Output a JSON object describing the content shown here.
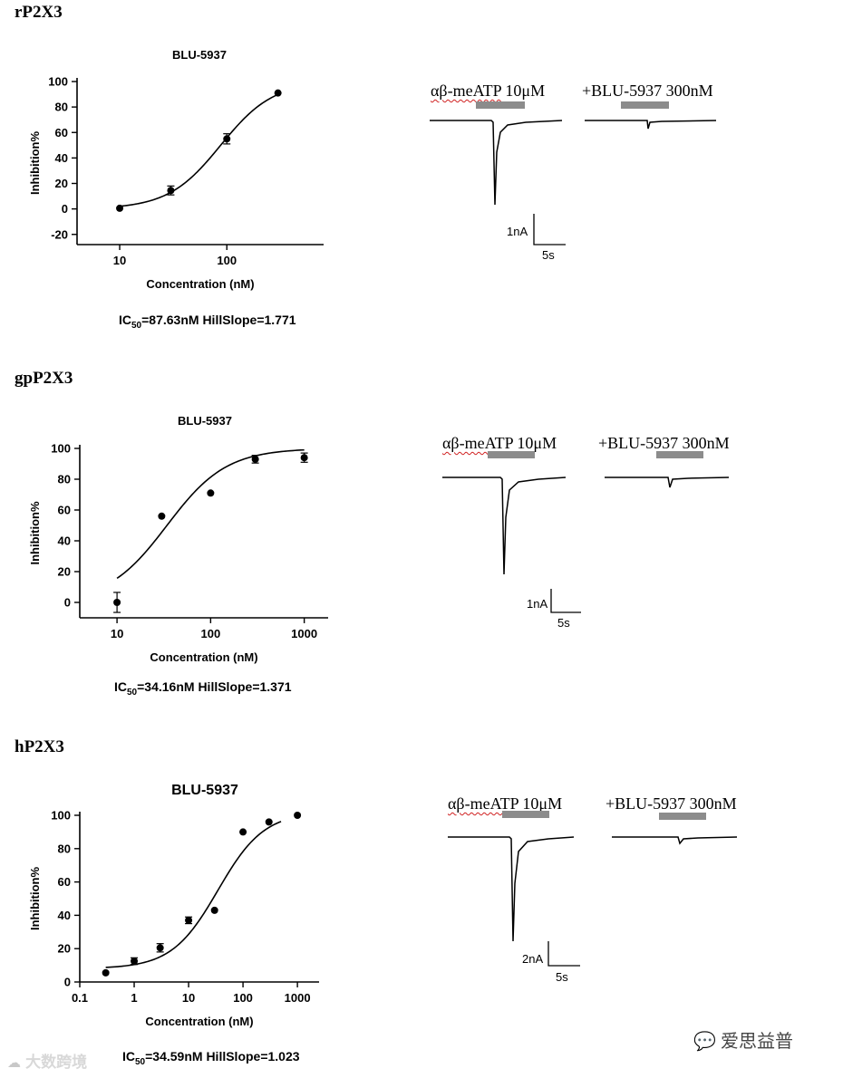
{
  "sections": [
    {
      "label": "rP2X3",
      "ic50_label": "IC",
      "ic50_sub": "50",
      "ic50_rest": "=87.63nM HillSlope=1.771",
      "trace": {
        "agonist_label_a": "αβ-meATP",
        "agonist_label_b": " 10μM",
        "antagonist_label": "+BLU-5937 300nM",
        "scale_current": "1nA",
        "scale_time": "5s"
      }
    },
    {
      "label": "gpP2X3",
      "ic50_label": "IC",
      "ic50_sub": "50",
      "ic50_rest": "=34.16nM HillSlope=1.371",
      "trace": {
        "agonist_label_a": "αβ-meATP",
        "agonist_label_b": " 10μM",
        "antagonist_label": "+BLU-5937 300nM",
        "scale_current": "1nA",
        "scale_time": "5s"
      }
    },
    {
      "label": "hP2X3",
      "ic50_label": "IC",
      "ic50_sub": "50",
      "ic50_rest": "=34.59nM HillSlope=1.023",
      "trace": {
        "agonist_label_a": "αβ-meATP",
        "agonist_label_b": " 10μM",
        "antagonist_label": "+BLU-5937 300nM",
        "scale_current": "2nA",
        "scale_time": "5s"
      }
    }
  ],
  "chart_data": [
    {
      "type": "scatter",
      "title": "BLU-5937",
      "xlabel": "Concentration (nM)",
      "ylabel": "Inhibition%",
      "xscale": "log",
      "xlim": [
        4,
        800
      ],
      "ylim": [
        -28,
        100
      ],
      "xticks": [
        10,
        100
      ],
      "xtick_labels": [
        "10",
        "100"
      ],
      "yticks": [
        -20,
        0,
        20,
        40,
        60,
        80,
        100
      ],
      "ytick_labels": [
        "-20",
        "0",
        "20",
        "40",
        "60",
        "80",
        "100"
      ],
      "points": [
        {
          "x": 10,
          "y": 0.5,
          "err": 0
        },
        {
          "x": 30,
          "y": 14.5,
          "err": 3.5
        },
        {
          "x": 100,
          "y": 55,
          "err": 4
        },
        {
          "x": 300,
          "y": 91,
          "err": 0
        }
      ],
      "fit": {
        "ic50": 87.63,
        "hill": 1.771,
        "bottom": 0,
        "top": 100,
        "x_range": [
          10,
          300
        ]
      },
      "grid": false,
      "legend": "none"
    },
    {
      "type": "scatter",
      "title": "BLU-5937",
      "xlabel": "Concentration (nM)",
      "ylabel": "Inhibition%",
      "xscale": "log",
      "xlim": [
        4,
        1800
      ],
      "ylim": [
        -10,
        100
      ],
      "xticks": [
        10,
        100,
        1000
      ],
      "xtick_labels": [
        "10",
        "100",
        "1000"
      ],
      "yticks": [
        0,
        20,
        40,
        60,
        80,
        100
      ],
      "ytick_labels": [
        "0",
        "20",
        "40",
        "60",
        "80",
        "100"
      ],
      "points": [
        {
          "x": 10,
          "y": 0,
          "err": 6.5
        },
        {
          "x": 30,
          "y": 56,
          "err": 0
        },
        {
          "x": 100,
          "y": 71,
          "err": 0
        },
        {
          "x": 300,
          "y": 93,
          "err": 2.5
        },
        {
          "x": 1000,
          "y": 94,
          "err": 3
        }
      ],
      "fit": {
        "ic50": 34.16,
        "hill": 1.371,
        "bottom": 0,
        "top": 100,
        "x_range": [
          10,
          1000
        ]
      },
      "grid": false,
      "legend": "none"
    },
    {
      "type": "scatter",
      "title": "BLU-5937",
      "xlabel": "Concentration (nM)",
      "ylabel": "Inhibition%",
      "xscale": "log",
      "xlim": [
        0.1,
        2500
      ],
      "ylim": [
        0,
        100
      ],
      "xticks": [
        0.1,
        1,
        10,
        100,
        1000
      ],
      "xtick_labels": [
        "0.1",
        "1",
        "10",
        "100",
        "1000"
      ],
      "yticks": [
        0,
        20,
        40,
        60,
        80,
        100
      ],
      "ytick_labels": [
        "0",
        "20",
        "40",
        "60",
        "80",
        "100"
      ],
      "points": [
        {
          "x": 0.3,
          "y": 5.5,
          "err": 0
        },
        {
          "x": 1,
          "y": 12.5,
          "err": 2
        },
        {
          "x": 3,
          "y": 20.5,
          "err": 2.5
        },
        {
          "x": 10,
          "y": 37,
          "err": 2
        },
        {
          "x": 30,
          "y": 43,
          "err": 0
        },
        {
          "x": 100,
          "y": 90,
          "err": 0
        },
        {
          "x": 300,
          "y": 96,
          "err": 0
        },
        {
          "x": 1000,
          "y": 100,
          "err": 0
        }
      ],
      "fit": {
        "ic50": 34.59,
        "hill": 1.023,
        "bottom": 8,
        "top": 102,
        "x_range": [
          0.3,
          500
        ]
      },
      "grid": false,
      "legend": "none"
    }
  ],
  "watermarks": {
    "left": "大数跨境",
    "right": "爱思益普"
  },
  "colors": {
    "bar": "#8c8c8c",
    "marker": "#000000"
  }
}
